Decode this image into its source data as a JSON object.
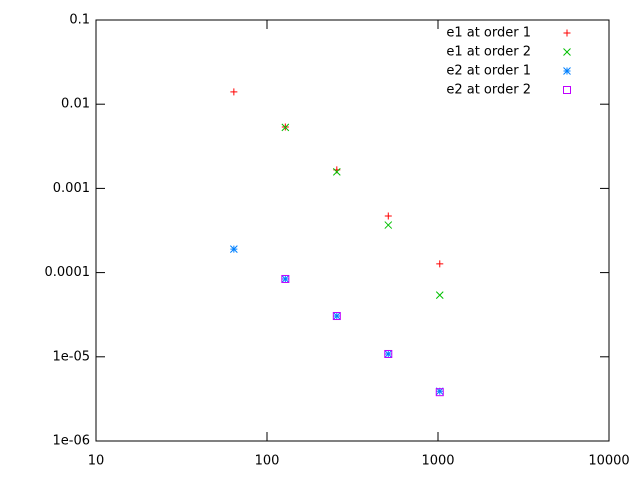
{
  "chart_data": {
    "type": "scatter",
    "x": [
      64,
      128,
      256,
      512,
      1024
    ],
    "xlim": [
      10,
      10000
    ],
    "xticks": [
      10,
      100,
      1000,
      10000
    ],
    "xscale": "log",
    "ylim": [
      1e-06,
      0.1
    ],
    "yticks": [
      {
        "value": 1e-06,
        "label": "1e-06"
      },
      {
        "value": 1e-05,
        "label": "1e-05"
      },
      0.0001,
      0.001,
      0.01,
      0.1
    ],
    "yscale": "log",
    "grid": false,
    "legend": "top-right",
    "series": [
      {
        "name": "e1 at order 1",
        "color": "#ff0000",
        "marker": "plus",
        "values": [
          0.014,
          0.00536,
          0.00166,
          0.00047,
          0.000127
        ]
      },
      {
        "name": "e1 at order 2",
        "color": "#00c000",
        "marker": "cross",
        "values": [
          null,
          0.0053,
          0.00157,
          0.000367,
          5.4e-05
        ]
      },
      {
        "name": "e2 at order 1",
        "color": "#0080ff",
        "marker": "star",
        "values": [
          0.00019,
          8.4e-05,
          3.05e-05,
          1.08e-05,
          3.9e-06
        ]
      },
      {
        "name": "e2 at order 2",
        "color": "#c000ff",
        "marker": "square",
        "values": [
          null,
          8.4e-05,
          3.05e-05,
          1.08e-05,
          3.8e-06
        ]
      }
    ]
  }
}
